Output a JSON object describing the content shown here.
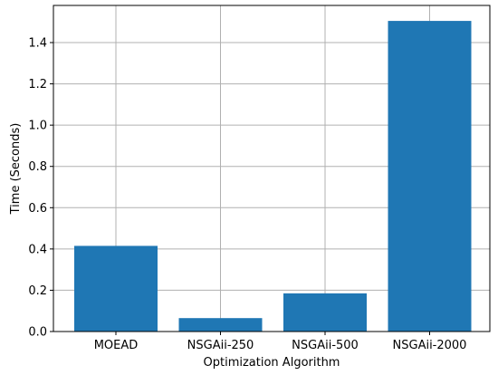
{
  "chart_data": {
    "type": "bar",
    "title": "",
    "xlabel": "Optimization Algorithm",
    "ylabel": "Time (Seconds)",
    "categories": [
      "MOEAD",
      "NSGAii-250",
      "NSGAii-500",
      "NSGAii-2000"
    ],
    "values": [
      0.415,
      0.065,
      0.185,
      1.505
    ],
    "ylim": [
      0,
      1.58
    ],
    "yticks": [
      0.0,
      0.2,
      0.4,
      0.6,
      0.8,
      1.0,
      1.2,
      1.4
    ],
    "ytick_labels": [
      "0.0",
      "0.2",
      "0.4",
      "0.6",
      "0.8",
      "1.0",
      "1.2",
      "1.4"
    ],
    "grid": true,
    "bar_color": "#1f77b4",
    "grid_color": "#b0b0b0"
  }
}
